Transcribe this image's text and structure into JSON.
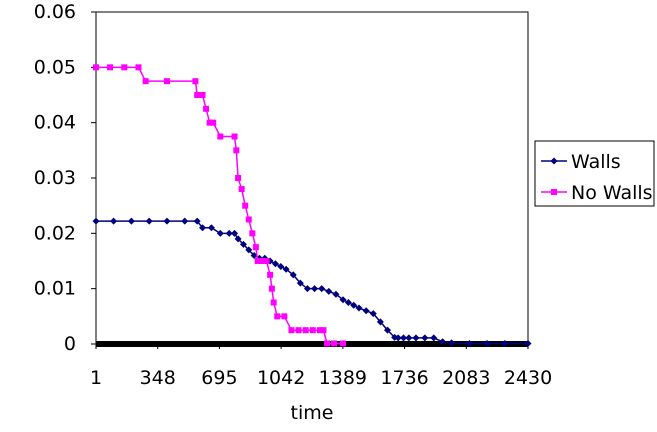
{
  "chart_data": {
    "type": "line",
    "title": "",
    "xlabel": "time",
    "ylabel": "",
    "xlim": [
      1,
      2430
    ],
    "ylim": [
      0,
      0.06
    ],
    "x_ticks": [
      "1",
      "348",
      "695",
      "1042",
      "1389",
      "1736",
      "2083",
      "2430"
    ],
    "y_ticks": [
      "0.06",
      "0.05",
      "0.04",
      "0.03",
      "0.02",
      "0.01",
      "0"
    ],
    "grid": false,
    "legend_position": "right",
    "series": [
      {
        "name": "Walls",
        "color": "#000080",
        "marker": "diamond",
        "x": [
          1,
          100,
          200,
          300,
          400,
          500,
          570,
          600,
          650,
          700,
          750,
          780,
          800,
          830,
          860,
          890,
          920,
          950,
          980,
          1010,
          1040,
          1070,
          1110,
          1150,
          1190,
          1230,
          1270,
          1310,
          1350,
          1390,
          1420,
          1450,
          1480,
          1520,
          1560,
          1600,
          1640,
          1680,
          1700,
          1730,
          1760,
          1800,
          1850,
          1900,
          1950,
          2000,
          2100,
          2200,
          2300,
          2430
        ],
        "y": [
          0.0222,
          0.0222,
          0.0222,
          0.0222,
          0.0222,
          0.0222,
          0.0222,
          0.021,
          0.021,
          0.02,
          0.02,
          0.02,
          0.019,
          0.018,
          0.017,
          0.016,
          0.0155,
          0.0155,
          0.015,
          0.0145,
          0.014,
          0.0135,
          0.0125,
          0.011,
          0.01,
          0.01,
          0.01,
          0.0095,
          0.009,
          0.008,
          0.0075,
          0.007,
          0.0065,
          0.006,
          0.0055,
          0.004,
          0.0025,
          0.0012,
          0.0011,
          0.0011,
          0.0011,
          0.0011,
          0.0011,
          0.0011,
          0.0004,
          0.0002,
          0.0001,
          0.0001,
          0.0001,
          0.0001
        ]
      },
      {
        "name": "No Walls",
        "color": "#FF00FF",
        "marker": "square",
        "x": [
          1,
          80,
          160,
          240,
          280,
          400,
          560,
          570,
          600,
          620,
          640,
          660,
          700,
          780,
          790,
          800,
          820,
          840,
          860,
          880,
          900,
          910,
          930,
          960,
          980,
          990,
          1000,
          1020,
          1060,
          1100,
          1140,
          1180,
          1220,
          1260,
          1280,
          1300,
          1340,
          1390
        ],
        "y": [
          0.05,
          0.05,
          0.05,
          0.05,
          0.0475,
          0.0475,
          0.0475,
          0.045,
          0.045,
          0.0425,
          0.04,
          0.04,
          0.0375,
          0.0375,
          0.035,
          0.03,
          0.028,
          0.025,
          0.0225,
          0.02,
          0.0175,
          0.015,
          0.015,
          0.015,
          0.0125,
          0.01,
          0.0075,
          0.005,
          0.005,
          0.0025,
          0.0025,
          0.0025,
          0.0025,
          0.0025,
          0.0025,
          0.0001,
          0.0001,
          0.0001
        ]
      }
    ]
  }
}
